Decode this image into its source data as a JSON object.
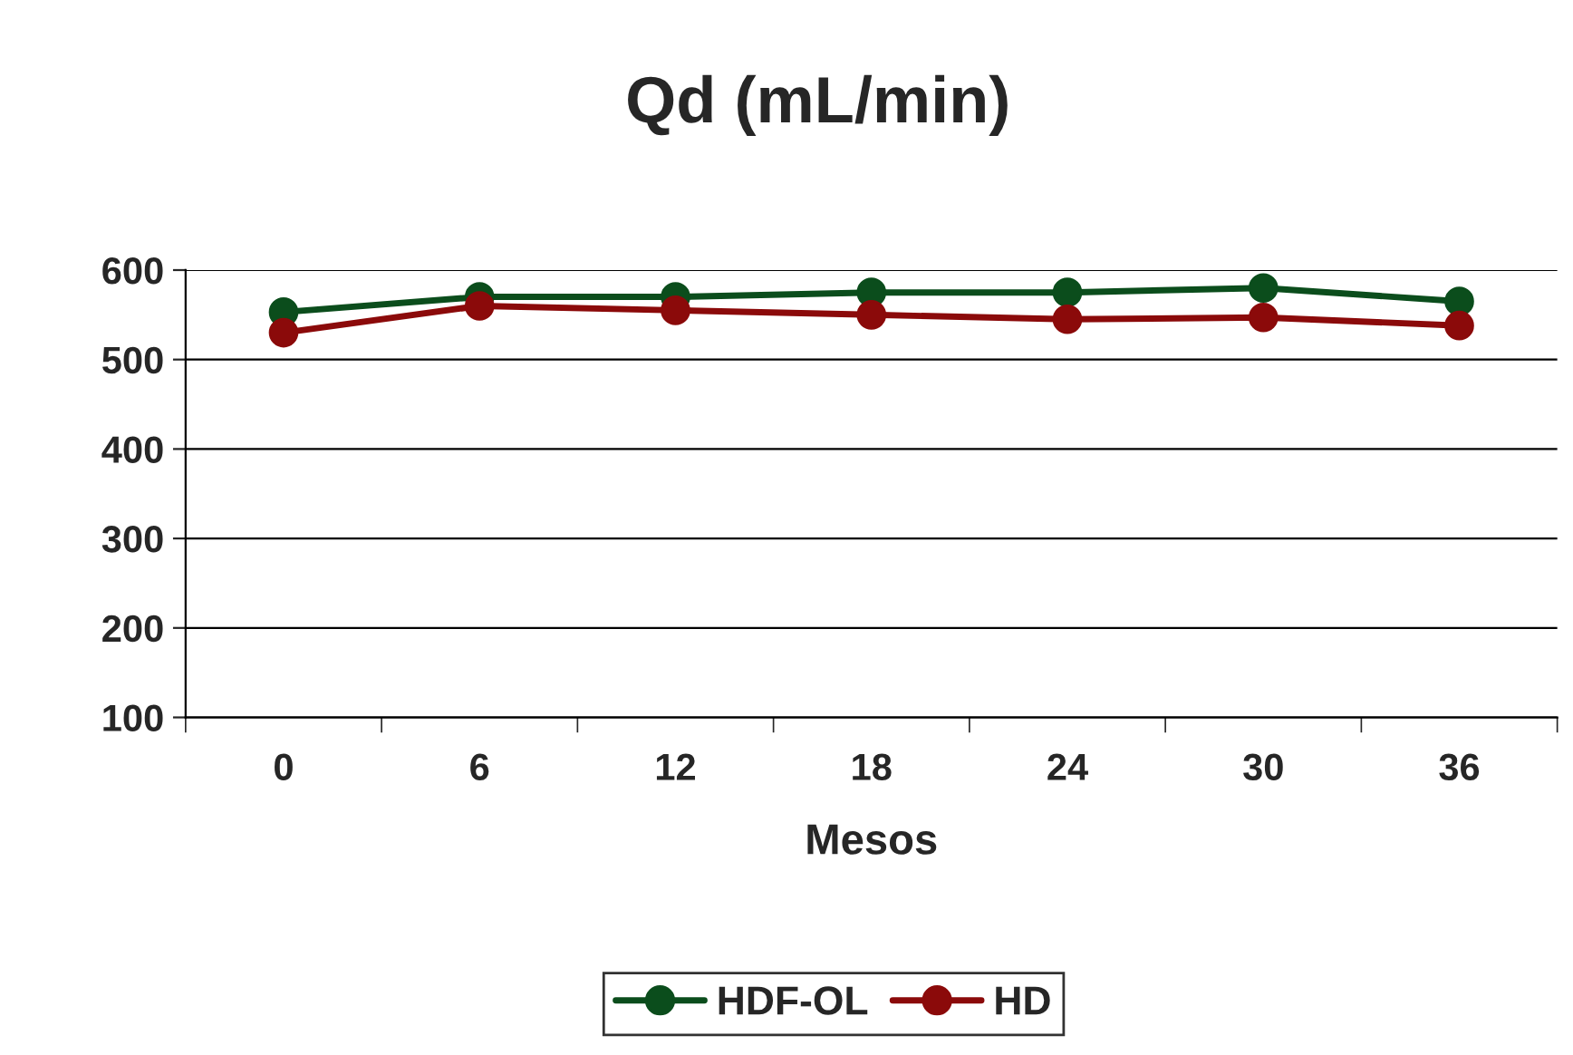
{
  "chart_data": {
    "type": "line",
    "title": "Qd (mL/min)",
    "xlabel": "Mesos",
    "categories": [
      "0",
      "6",
      "12",
      "18",
      "24",
      "30",
      "36"
    ],
    "series": [
      {
        "name": "HDF-OL",
        "color": "#0b4d1c",
        "values": [
          553,
          570,
          570,
          575,
          575,
          580,
          565
        ]
      },
      {
        "name": "HD",
        "color": "#8b0a0a",
        "values": [
          530,
          560,
          555,
          550,
          545,
          547,
          538
        ]
      }
    ],
    "ylim": [
      100,
      600
    ],
    "yticks": [
      100,
      200,
      300,
      400,
      500,
      600
    ],
    "grid": "y",
    "legend": "bottom",
    "marker": "circle",
    "line_style": "solid"
  }
}
